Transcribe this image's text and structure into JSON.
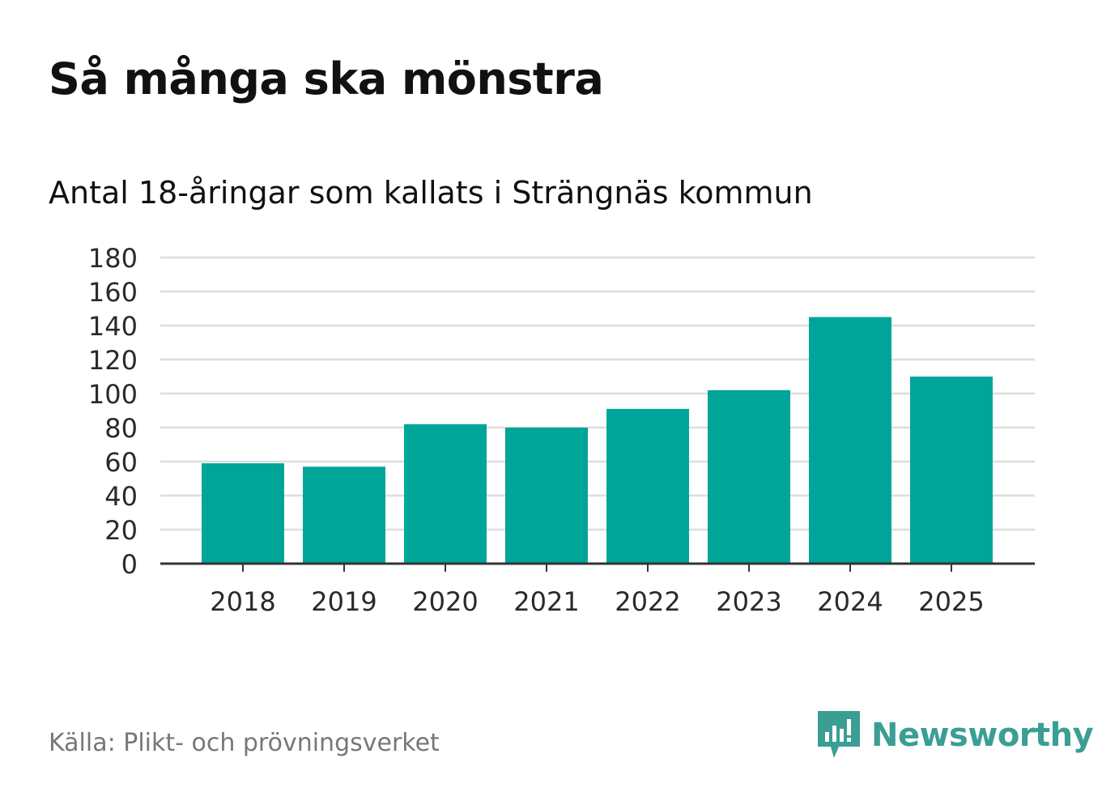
{
  "header": {
    "title": "Så många ska mönstra",
    "subtitle": "Antal 18-åringar som kallats i Strängnäs kommun"
  },
  "footer": {
    "source": "Källa: Plikt- och prövningsverket",
    "brand": "Newsworthy",
    "brand_icon": "bar-chart-speech-bubble-icon"
  },
  "colors": {
    "bar": "#00a59a",
    "grid": "#dddddd",
    "axis": "#333333",
    "brand": "#3a9e95"
  },
  "chart_data": {
    "type": "bar",
    "title": "Så många ska mönstra",
    "subtitle": "Antal 18-åringar som kallats i Strängnäs kommun",
    "categories": [
      "2018",
      "2019",
      "2020",
      "2021",
      "2022",
      "2023",
      "2024",
      "2025"
    ],
    "values": [
      59,
      57,
      82,
      80,
      91,
      102,
      145,
      110
    ],
    "xlabel": "",
    "ylabel": "",
    "ylim": [
      0,
      180
    ],
    "yticks": [
      0,
      20,
      40,
      60,
      80,
      100,
      120,
      140,
      160,
      180
    ],
    "grid": true,
    "legend": "none"
  }
}
